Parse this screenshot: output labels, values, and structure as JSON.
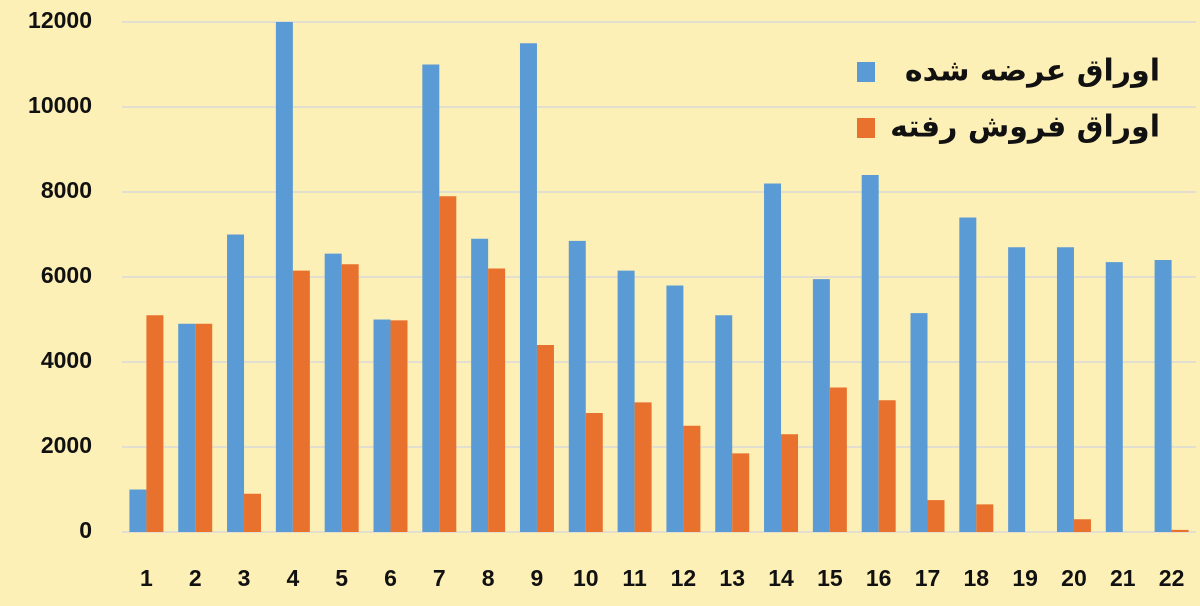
{
  "chart_data": {
    "type": "bar",
    "categories": [
      "1",
      "2",
      "3",
      "4",
      "5",
      "6",
      "7",
      "8",
      "9",
      "10",
      "11",
      "12",
      "13",
      "14",
      "15",
      "16",
      "17",
      "18",
      "19",
      "20",
      "21",
      "22"
    ],
    "series": [
      {
        "name": "اوراق عرضه شده",
        "color": "#5b9bd5",
        "values": [
          1000,
          4900,
          7000,
          12000,
          6550,
          5000,
          11000,
          6900,
          11500,
          6850,
          6150,
          5800,
          5100,
          8200,
          5950,
          8400,
          5150,
          7400,
          6700,
          6700,
          6350,
          6400
        ]
      },
      {
        "name": "اوراق فروش رفته",
        "color": "#e8712d",
        "values": [
          5100,
          4900,
          900,
          6150,
          6300,
          4980,
          7900,
          6200,
          4400,
          2800,
          3050,
          2500,
          1850,
          2300,
          3400,
          3100,
          750,
          650,
          0,
          300,
          0,
          50
        ]
      }
    ],
    "ylim": [
      0,
      12000
    ],
    "yticks": [
      0,
      2000,
      4000,
      6000,
      8000,
      10000,
      12000
    ],
    "grid": true,
    "legend": "top-right"
  }
}
